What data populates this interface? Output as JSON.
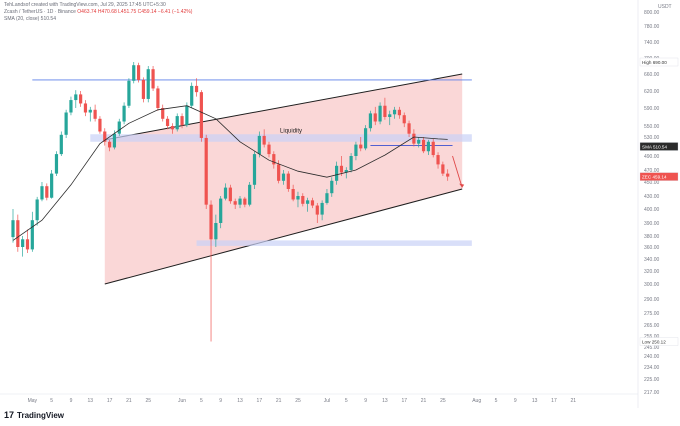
{
  "header": {
    "created_by": "TehLandsof created with TradingView.com, Jul 29, 2025 17:45 UTC+5:30",
    "symbol": "Zcash / TetherUS · 1D · Binance",
    "ohlc": "O463.74 H470.68 L451.75 C459.14 −6.41 (−1.42%)",
    "sma": "SMA (20, close) 510.54"
  },
  "footer": {
    "brand": "TradingView"
  },
  "colors": {
    "up": "#26a69a",
    "down": "#ef5350",
    "channel": "#f8caca",
    "zone": "#c9d2f7",
    "sma": "#2b2b2b",
    "resistance": "#5b7fe8",
    "axis_text": "#787b86"
  },
  "chart_data": {
    "type": "candlestick",
    "symbol": "Zcash / TetherUS",
    "timeframe": "1D",
    "exchange": "Binance",
    "x_start": "2025-04-27",
    "ylim": [
      213,
      800
    ],
    "y_ticks": [
      800,
      780,
      740,
      700,
      660,
      620,
      590,
      550,
      530,
      490,
      470,
      450,
      430,
      400,
      390,
      380,
      360,
      340,
      320,
      300,
      290,
      275,
      265,
      255,
      245,
      240,
      234,
      225,
      217
    ],
    "x_ticks": [
      {
        "label": "May",
        "date": "2025-05-01"
      },
      {
        "label": "5",
        "date": "2025-05-05"
      },
      {
        "label": "9",
        "date": "2025-05-09"
      },
      {
        "label": "13",
        "date": "2025-05-13"
      },
      {
        "label": "17",
        "date": "2025-05-17"
      },
      {
        "label": "21",
        "date": "2025-05-21"
      },
      {
        "label": "25",
        "date": "2025-05-25"
      },
      {
        "label": "Jun",
        "date": "2025-06-01"
      },
      {
        "label": "5",
        "date": "2025-06-05"
      },
      {
        "label": "9",
        "date": "2025-06-09"
      },
      {
        "label": "13",
        "date": "2025-06-13"
      },
      {
        "label": "17",
        "date": "2025-06-17"
      },
      {
        "label": "21",
        "date": "2025-06-21"
      },
      {
        "label": "25",
        "date": "2025-06-25"
      },
      {
        "label": "Jul",
        "date": "2025-07-01"
      },
      {
        "label": "5",
        "date": "2025-07-05"
      },
      {
        "label": "9",
        "date": "2025-07-09"
      },
      {
        "label": "13",
        "date": "2025-07-13"
      },
      {
        "label": "17",
        "date": "2025-07-17"
      },
      {
        "label": "21",
        "date": "2025-07-21"
      },
      {
        "label": "25",
        "date": "2025-07-25"
      },
      {
        "label": "Aug",
        "date": "2025-08-01"
      },
      {
        "label": "5",
        "date": "2025-08-05"
      },
      {
        "label": "9",
        "date": "2025-08-09"
      },
      {
        "label": "13",
        "date": "2025-08-13"
      },
      {
        "label": "17",
        "date": "2025-08-17"
      },
      {
        "label": "21",
        "date": "2025-08-21"
      }
    ],
    "candles": [
      {
        "date": "2025-04-27",
        "o": 378,
        "h": 400,
        "l": 368,
        "c": 392
      },
      {
        "date": "2025-04-28",
        "o": 392,
        "h": 396,
        "l": 352,
        "c": 360
      },
      {
        "date": "2025-04-29",
        "o": 360,
        "h": 380,
        "l": 344,
        "c": 374
      },
      {
        "date": "2025-04-30",
        "o": 374,
        "h": 385,
        "l": 350,
        "c": 356
      },
      {
        "date": "2025-05-01",
        "o": 356,
        "h": 398,
        "l": 352,
        "c": 392
      },
      {
        "date": "2025-05-02",
        "o": 392,
        "h": 428,
        "l": 388,
        "c": 422
      },
      {
        "date": "2025-05-03",
        "o": 422,
        "h": 450,
        "l": 418,
        "c": 444
      },
      {
        "date": "2025-05-04",
        "o": 444,
        "h": 448,
        "l": 420,
        "c": 426
      },
      {
        "date": "2025-05-05",
        "o": 426,
        "h": 470,
        "l": 424,
        "c": 464
      },
      {
        "date": "2025-05-06",
        "o": 464,
        "h": 500,
        "l": 460,
        "c": 494
      },
      {
        "date": "2025-05-07",
        "o": 494,
        "h": 540,
        "l": 490,
        "c": 534
      },
      {
        "date": "2025-05-08",
        "o": 534,
        "h": 586,
        "l": 528,
        "c": 580
      },
      {
        "date": "2025-05-09",
        "o": 580,
        "h": 610,
        "l": 574,
        "c": 604
      },
      {
        "date": "2025-05-10",
        "o": 604,
        "h": 622,
        "l": 590,
        "c": 614
      },
      {
        "date": "2025-05-11",
        "o": 614,
        "h": 620,
        "l": 592,
        "c": 598
      },
      {
        "date": "2025-05-12",
        "o": 598,
        "h": 604,
        "l": 572,
        "c": 580
      },
      {
        "date": "2025-05-13",
        "o": 580,
        "h": 592,
        "l": 560,
        "c": 586
      },
      {
        "date": "2025-05-14",
        "o": 586,
        "h": 596,
        "l": 560,
        "c": 566
      },
      {
        "date": "2025-05-15",
        "o": 566,
        "h": 572,
        "l": 536,
        "c": 540
      },
      {
        "date": "2025-05-16",
        "o": 540,
        "h": 546,
        "l": 512,
        "c": 520
      },
      {
        "date": "2025-05-17",
        "o": 520,
        "h": 524,
        "l": 500,
        "c": 508
      },
      {
        "date": "2025-05-18",
        "o": 508,
        "h": 542,
        "l": 504,
        "c": 536
      },
      {
        "date": "2025-05-19",
        "o": 536,
        "h": 566,
        "l": 532,
        "c": 560
      },
      {
        "date": "2025-05-20",
        "o": 560,
        "h": 600,
        "l": 554,
        "c": 594
      },
      {
        "date": "2025-05-21",
        "o": 594,
        "h": 650,
        "l": 590,
        "c": 644
      },
      {
        "date": "2025-05-22",
        "o": 644,
        "h": 690,
        "l": 638,
        "c": 682
      },
      {
        "date": "2025-05-23",
        "o": 682,
        "h": 688,
        "l": 640,
        "c": 646
      },
      {
        "date": "2025-05-24",
        "o": 646,
        "h": 652,
        "l": 600,
        "c": 606
      },
      {
        "date": "2025-05-25",
        "o": 606,
        "h": 680,
        "l": 600,
        "c": 672
      },
      {
        "date": "2025-05-26",
        "o": 672,
        "h": 680,
        "l": 620,
        "c": 626
      },
      {
        "date": "2025-05-27",
        "o": 626,
        "h": 632,
        "l": 584,
        "c": 590
      },
      {
        "date": "2025-05-28",
        "o": 590,
        "h": 596,
        "l": 560,
        "c": 566
      },
      {
        "date": "2025-05-29",
        "o": 566,
        "h": 572,
        "l": 544,
        "c": 550
      },
      {
        "date": "2025-05-30",
        "o": 550,
        "h": 556,
        "l": 536,
        "c": 544
      },
      {
        "date": "2025-05-31",
        "o": 544,
        "h": 578,
        "l": 540,
        "c": 572
      },
      {
        "date": "2025-06-01",
        "o": 572,
        "h": 578,
        "l": 546,
        "c": 552
      },
      {
        "date": "2025-06-02",
        "o": 552,
        "h": 600,
        "l": 548,
        "c": 594
      },
      {
        "date": "2025-06-03",
        "o": 594,
        "h": 640,
        "l": 590,
        "c": 632
      },
      {
        "date": "2025-06-04",
        "o": 632,
        "h": 650,
        "l": 610,
        "c": 618
      },
      {
        "date": "2025-06-05",
        "o": 618,
        "h": 622,
        "l": 520,
        "c": 528
      },
      {
        "date": "2025-06-06",
        "o": 528,
        "h": 534,
        "l": 400,
        "c": 410
      },
      {
        "date": "2025-06-07",
        "o": 410,
        "h": 420,
        "l": 250,
        "c": 374
      },
      {
        "date": "2025-06-08",
        "o": 374,
        "h": 396,
        "l": 360,
        "c": 390
      },
      {
        "date": "2025-06-09",
        "o": 390,
        "h": 430,
        "l": 386,
        "c": 424
      },
      {
        "date": "2025-06-10",
        "o": 424,
        "h": 448,
        "l": 420,
        "c": 442
      },
      {
        "date": "2025-06-11",
        "o": 442,
        "h": 446,
        "l": 412,
        "c": 418
      },
      {
        "date": "2025-06-12",
        "o": 418,
        "h": 424,
        "l": 400,
        "c": 410
      },
      {
        "date": "2025-06-13",
        "o": 410,
        "h": 430,
        "l": 402,
        "c": 424
      },
      {
        "date": "2025-06-14",
        "o": 424,
        "h": 428,
        "l": 404,
        "c": 410
      },
      {
        "date": "2025-06-15",
        "o": 410,
        "h": 450,
        "l": 406,
        "c": 446
      },
      {
        "date": "2025-06-16",
        "o": 446,
        "h": 500,
        "l": 440,
        "c": 494
      },
      {
        "date": "2025-06-17",
        "o": 494,
        "h": 540,
        "l": 488,
        "c": 532
      },
      {
        "date": "2025-06-18",
        "o": 532,
        "h": 544,
        "l": 508,
        "c": 514
      },
      {
        "date": "2025-06-19",
        "o": 514,
        "h": 520,
        "l": 488,
        "c": 494
      },
      {
        "date": "2025-06-20",
        "o": 494,
        "h": 500,
        "l": 472,
        "c": 478
      },
      {
        "date": "2025-06-21",
        "o": 478,
        "h": 484,
        "l": 448,
        "c": 452
      },
      {
        "date": "2025-06-22",
        "o": 452,
        "h": 470,
        "l": 446,
        "c": 464
      },
      {
        "date": "2025-06-23",
        "o": 464,
        "h": 468,
        "l": 436,
        "c": 440
      },
      {
        "date": "2025-06-24",
        "o": 440,
        "h": 446,
        "l": 418,
        "c": 422
      },
      {
        "date": "2025-06-25",
        "o": 422,
        "h": 436,
        "l": 404,
        "c": 430
      },
      {
        "date": "2025-06-26",
        "o": 430,
        "h": 434,
        "l": 406,
        "c": 412
      },
      {
        "date": "2025-06-27",
        "o": 412,
        "h": 426,
        "l": 398,
        "c": 420
      },
      {
        "date": "2025-06-28",
        "o": 420,
        "h": 426,
        "l": 402,
        "c": 408
      },
      {
        "date": "2025-06-29",
        "o": 408,
        "h": 414,
        "l": 390,
        "c": 396
      },
      {
        "date": "2025-06-30",
        "o": 396,
        "h": 420,
        "l": 392,
        "c": 414
      },
      {
        "date": "2025-07-01",
        "o": 414,
        "h": 440,
        "l": 410,
        "c": 434
      },
      {
        "date": "2025-07-02",
        "o": 434,
        "h": 458,
        "l": 428,
        "c": 452
      },
      {
        "date": "2025-07-03",
        "o": 452,
        "h": 482,
        "l": 446,
        "c": 476
      },
      {
        "date": "2025-07-04",
        "o": 476,
        "h": 490,
        "l": 460,
        "c": 466
      },
      {
        "date": "2025-07-05",
        "o": 466,
        "h": 474,
        "l": 456,
        "c": 470
      },
      {
        "date": "2025-07-06",
        "o": 470,
        "h": 496,
        "l": 466,
        "c": 490
      },
      {
        "date": "2025-07-07",
        "o": 490,
        "h": 520,
        "l": 484,
        "c": 514
      },
      {
        "date": "2025-07-08",
        "o": 514,
        "h": 530,
        "l": 500,
        "c": 506
      },
      {
        "date": "2025-07-09",
        "o": 506,
        "h": 552,
        "l": 502,
        "c": 546
      },
      {
        "date": "2025-07-10",
        "o": 546,
        "h": 584,
        "l": 540,
        "c": 578
      },
      {
        "date": "2025-07-11",
        "o": 578,
        "h": 592,
        "l": 552,
        "c": 560
      },
      {
        "date": "2025-07-12",
        "o": 560,
        "h": 600,
        "l": 554,
        "c": 594
      },
      {
        "date": "2025-07-13",
        "o": 594,
        "h": 608,
        "l": 564,
        "c": 570
      },
      {
        "date": "2025-07-14",
        "o": 570,
        "h": 584,
        "l": 552,
        "c": 576
      },
      {
        "date": "2025-07-15",
        "o": 576,
        "h": 592,
        "l": 566,
        "c": 586
      },
      {
        "date": "2025-07-16",
        "o": 586,
        "h": 592,
        "l": 566,
        "c": 574
      },
      {
        "date": "2025-07-17",
        "o": 574,
        "h": 580,
        "l": 548,
        "c": 556
      },
      {
        "date": "2025-07-18",
        "o": 556,
        "h": 562,
        "l": 530,
        "c": 536
      },
      {
        "date": "2025-07-19",
        "o": 536,
        "h": 544,
        "l": 510,
        "c": 516
      },
      {
        "date": "2025-07-20",
        "o": 516,
        "h": 530,
        "l": 508,
        "c": 524
      },
      {
        "date": "2025-07-21",
        "o": 524,
        "h": 530,
        "l": 496,
        "c": 500
      },
      {
        "date": "2025-07-22",
        "o": 500,
        "h": 524,
        "l": 492,
        "c": 520
      },
      {
        "date": "2025-07-23",
        "o": 520,
        "h": 526,
        "l": 488,
        "c": 492
      },
      {
        "date": "2025-07-24",
        "o": 492,
        "h": 498,
        "l": 472,
        "c": 478
      },
      {
        "date": "2025-07-25",
        "o": 478,
        "h": 482,
        "l": 460,
        "c": 464
      },
      {
        "date": "2025-07-26",
        "o": 464,
        "h": 471,
        "l": 452,
        "c": 459
      }
    ],
    "sma": {
      "name": "SMA (20, close)",
      "points": [
        [
          "2025-04-27",
          372
        ],
        [
          "2025-05-03",
          392
        ],
        [
          "2025-05-09",
          446
        ],
        [
          "2025-05-15",
          516
        ],
        [
          "2025-05-21",
          556
        ],
        [
          "2025-05-27",
          586
        ],
        [
          "2025-06-02",
          594
        ],
        [
          "2025-06-08",
          566
        ],
        [
          "2025-06-13",
          520
        ],
        [
          "2025-06-19",
          484
        ],
        [
          "2025-06-25",
          468
        ],
        [
          "2025-07-01",
          458
        ],
        [
          "2025-07-07",
          470
        ],
        [
          "2025-07-13",
          492
        ],
        [
          "2025-07-19",
          530
        ],
        [
          "2025-07-24",
          526
        ],
        [
          "2025-07-26",
          525
        ]
      ]
    },
    "annotations": [
      {
        "type": "channel",
        "upper": [
          [
            "2025-05-16",
            524
          ],
          [
            "2025-07-29",
            660
          ]
        ],
        "lower": [
          [
            "2025-05-16",
            300
          ],
          [
            "2025-07-29",
            440
          ]
        ]
      },
      {
        "type": "hline",
        "label": "",
        "price": 646,
        "from": "2025-05-01",
        "to": "2025-07-31"
      },
      {
        "type": "zone",
        "label": "Liquidity",
        "top": 535,
        "bottom": 520,
        "from": "2025-05-13",
        "to": "2025-07-31"
      },
      {
        "type": "zone",
        "label": "",
        "top": 372,
        "bottom": 362,
        "from": "2025-06-04",
        "to": "2025-07-31"
      },
      {
        "type": "hline",
        "label": "",
        "price": 512,
        "from": "2025-07-10",
        "to": "2025-07-27"
      },
      {
        "type": "arrow",
        "from": [
          "2025-07-27",
          490
        ],
        "to": [
          "2025-07-29",
          442
        ]
      }
    ],
    "price_labels": [
      {
        "text": "USDT",
        "price": 800
      },
      {
        "text": "High",
        "value": "690.00",
        "price": 690
      },
      {
        "text": "SMA",
        "value": "510.54",
        "price": 510
      },
      {
        "text": "ZEC",
        "value": "459.14",
        "price": 459
      },
      {
        "text": "Low",
        "value": "250.12",
        "price": 250
      }
    ]
  }
}
